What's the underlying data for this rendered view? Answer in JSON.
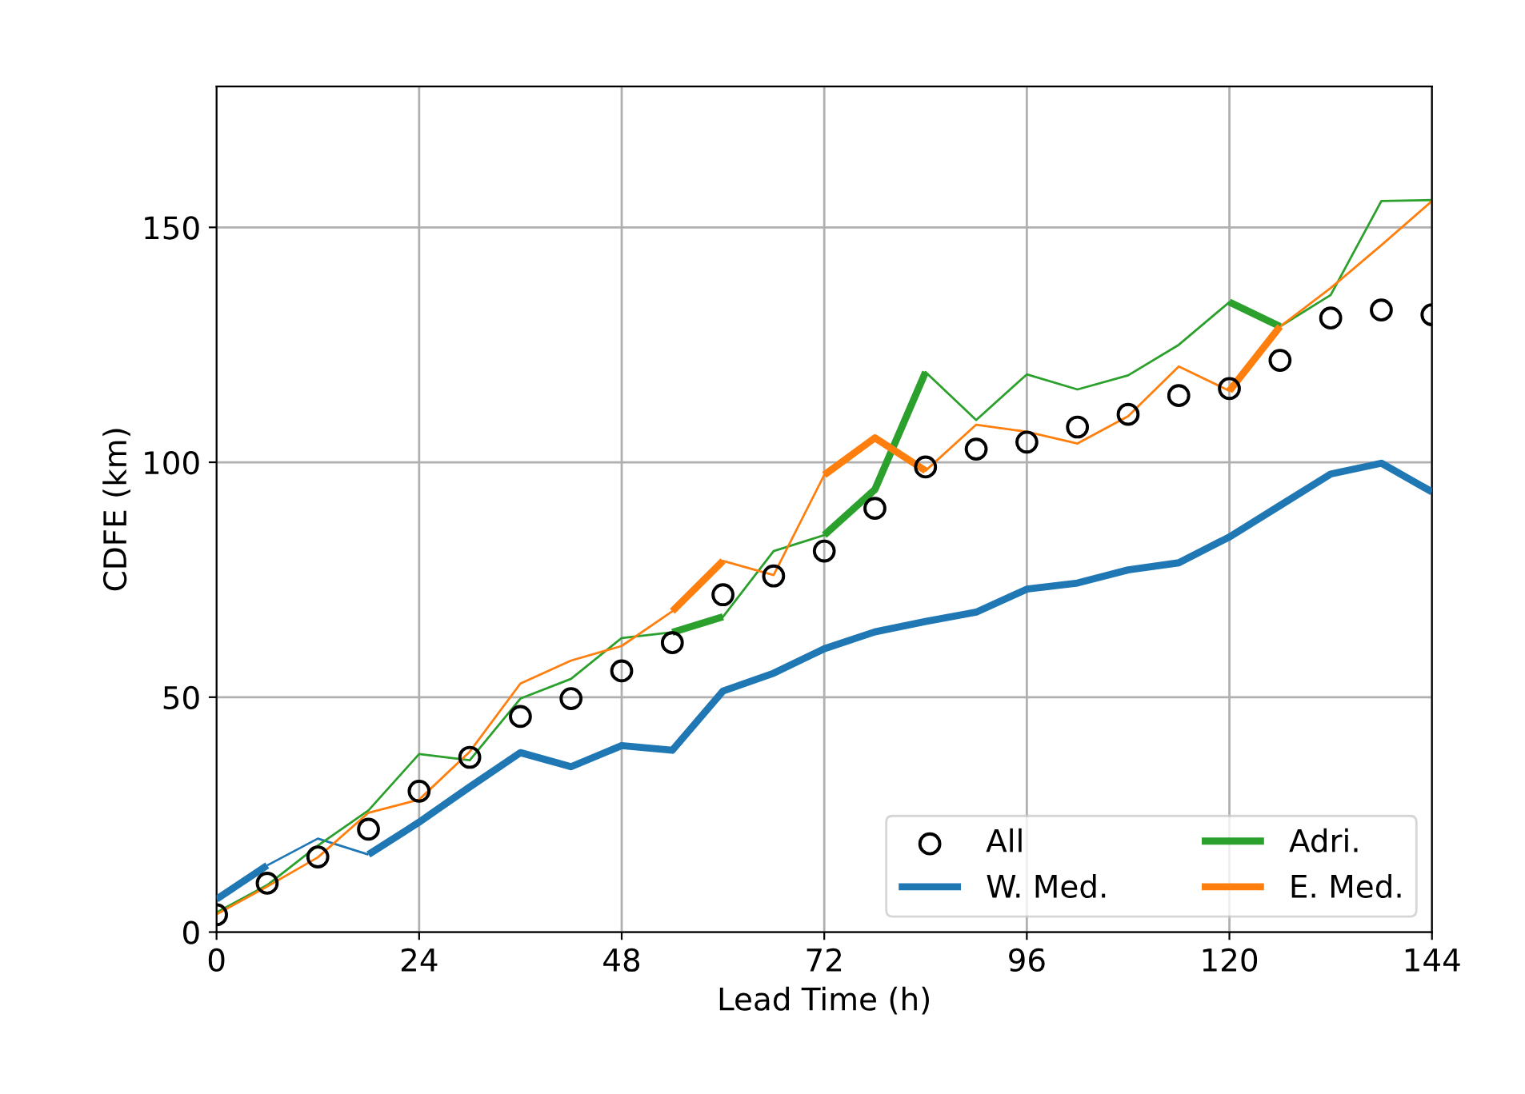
{
  "chart_data": {
    "type": "line",
    "xlabel": "Lead Time (h)",
    "ylabel": "CDFE (km)",
    "x": [
      0,
      6,
      12,
      18,
      24,
      30,
      36,
      42,
      48,
      54,
      60,
      66,
      72,
      78,
      84,
      90,
      96,
      102,
      108,
      114,
      120,
      126,
      132,
      138,
      144
    ],
    "xlim": [
      0,
      144
    ],
    "xticks": [
      0,
      24,
      48,
      72,
      96,
      120,
      144
    ],
    "ylim": [
      0,
      180
    ],
    "yticks": [
      0,
      50,
      100,
      150
    ],
    "grid": true,
    "legend": "bottom right",
    "series": [
      {
        "name": "All",
        "type": "scatter",
        "marker": "circle",
        "color": "#000000",
        "values": [
          3.7,
          10.4,
          16.0,
          21.9,
          30.0,
          37.2,
          45.9,
          49.7,
          55.6,
          61.6,
          71.8,
          75.8,
          81.1,
          90.2,
          99.0,
          102.8,
          104.3,
          107.5,
          110.2,
          114.2,
          115.7,
          121.7,
          130.7,
          132.4,
          131.4
        ]
      },
      {
        "color": "#1f77b4",
        "values": [
          null,
          14.2,
          19.9,
          16.5,
          null,
          null,
          null,
          null,
          null,
          null,
          null,
          null,
          null,
          null,
          null,
          null,
          null,
          null,
          null,
          null,
          null,
          null,
          null,
          null,
          null
        ]
      },
      {
        "name": "W. Med.",
        "color": "#1f77b4",
        "values": [
          7.0,
          14.2,
          null,
          16.5,
          23.4,
          30.9,
          38.2,
          35.2,
          39.7,
          38.7,
          51.3,
          55.1,
          60.3,
          63.9,
          66.1,
          68.1,
          73.0,
          74.3,
          77.1,
          78.6,
          84.1,
          90.8,
          97.5,
          99.8,
          93.7
        ]
      },
      {
        "color": "#2ca02c",
        "values": [
          4.2,
          10.0,
          18.4,
          25.9,
          37.9,
          36.6,
          49.7,
          53.9,
          62.6,
          63.8,
          67.1,
          81.1,
          84.5,
          94.2,
          119.2,
          109.0,
          118.7,
          115.5,
          118.5,
          125.0,
          134.1,
          128.9,
          135.6,
          155.6,
          155.8
        ]
      },
      {
        "name": "Adri.",
        "color": "#2ca02c",
        "values": [
          null,
          null,
          null,
          null,
          null,
          null,
          null,
          null,
          null,
          63.8,
          67.1,
          null,
          84.5,
          94.2,
          119.2,
          null,
          null,
          null,
          null,
          null,
          134.1,
          128.9,
          null,
          null,
          null
        ]
      },
      {
        "color": "#ff7f0e",
        "values": [
          3.8,
          9.7,
          15.9,
          25.4,
          28.2,
          38.4,
          52.9,
          57.8,
          60.9,
          68.3,
          79.0,
          76.0,
          97.3,
          105.2,
          98.2,
          108.0,
          106.5,
          104.0,
          109.8,
          120.4,
          115.2,
          128.9,
          137.1,
          146.2,
          155.6
        ]
      },
      {
        "name": "E. Med.",
        "color": "#ff7f0e",
        "values": [
          null,
          null,
          null,
          null,
          null,
          null,
          null,
          null,
          null,
          68.3,
          79.0,
          null,
          97.3,
          105.2,
          98.2,
          null,
          null,
          null,
          null,
          null,
          115.2,
          128.9,
          null,
          null,
          null
        ]
      }
    ]
  }
}
